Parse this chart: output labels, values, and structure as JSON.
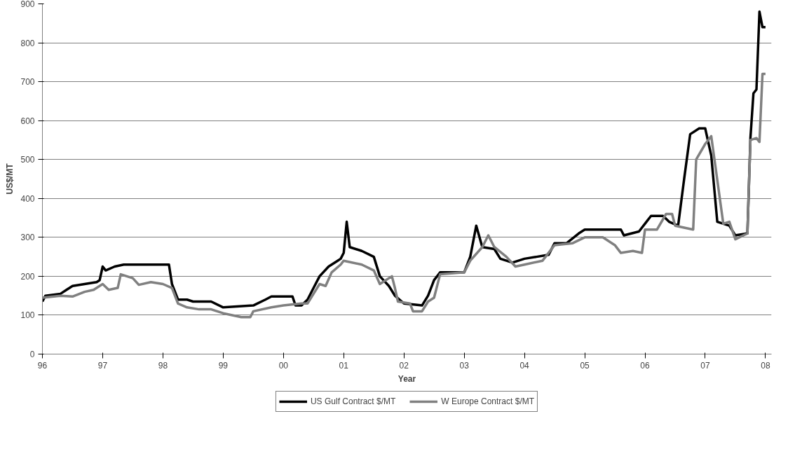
{
  "chart_data": {
    "type": "line",
    "xlabel": "Year",
    "ylabel": "US$/MT",
    "xlim": [
      1996,
      2008.1
    ],
    "ylim": [
      0,
      900
    ],
    "xticks": [
      {
        "value": 1996,
        "label": "96"
      },
      {
        "value": 1997,
        "label": "97"
      },
      {
        "value": 1998,
        "label": "98"
      },
      {
        "value": 1999,
        "label": "99"
      },
      {
        "value": 2000,
        "label": "00"
      },
      {
        "value": 2001,
        "label": "01"
      },
      {
        "value": 2002,
        "label": "02"
      },
      {
        "value": 2003,
        "label": "03"
      },
      {
        "value": 2004,
        "label": "04"
      },
      {
        "value": 2005,
        "label": "05"
      },
      {
        "value": 2006,
        "label": "06"
      },
      {
        "value": 2007,
        "label": "07"
      },
      {
        "value": 2008,
        "label": "08"
      }
    ],
    "yticks": [
      0,
      100,
      200,
      300,
      400,
      500,
      600,
      700,
      800,
      900
    ],
    "grid": "y",
    "legend": "bottom",
    "marker": "none",
    "line_style": "solid",
    "series": [
      {
        "name": "US Gulf Contract $/MT",
        "color": "#000000",
        "x": [
          1996.0,
          1996.05,
          1996.3,
          1996.4,
          1996.5,
          1996.7,
          1996.9,
          1996.95,
          1997.0,
          1997.05,
          1997.2,
          1997.35,
          1998.1,
          1998.15,
          1998.25,
          1998.4,
          1998.5,
          1998.8,
          1999.0,
          1999.5,
          1999.7,
          1999.8,
          2000.15,
          2000.2,
          2000.3,
          2000.4,
          2000.5,
          2000.6,
          2000.75,
          2000.9,
          2000.95,
          2001.0,
          2001.05,
          2001.1,
          2001.3,
          2001.5,
          2001.6,
          2001.75,
          2001.85,
          2002.0,
          2002.3,
          2002.4,
          2002.5,
          2002.6,
          2003.0,
          2003.1,
          2003.2,
          2003.3,
          2003.5,
          2003.6,
          2003.8,
          2004.0,
          2004.2,
          2004.4,
          2004.5,
          2004.7,
          2004.9,
          2005.0,
          2005.6,
          2005.65,
          2005.9,
          2006.0,
          2006.1,
          2006.3,
          2006.4,
          2006.55,
          2006.65,
          2006.75,
          2006.9,
          2007.0,
          2007.1,
          2007.2,
          2007.4,
          2007.5,
          2007.7,
          2007.75,
          2007.8,
          2007.85,
          2007.9,
          2007.95,
          2008.0
        ],
        "values": [
          135,
          150,
          155,
          165,
          175,
          180,
          185,
          190,
          225,
          215,
          225,
          230,
          230,
          180,
          140,
          140,
          135,
          135,
          120,
          125,
          140,
          148,
          148,
          125,
          125,
          140,
          170,
          200,
          225,
          240,
          245,
          260,
          340,
          275,
          265,
          250,
          200,
          175,
          150,
          130,
          125,
          150,
          190,
          210,
          210,
          250,
          330,
          275,
          270,
          245,
          235,
          245,
          250,
          255,
          285,
          285,
          310,
          320,
          320,
          305,
          315,
          335,
          355,
          355,
          340,
          330,
          450,
          565,
          580,
          580,
          510,
          340,
          330,
          305,
          310,
          555,
          670,
          680,
          880,
          840,
          840
        ]
      },
      {
        "name": "W Europe Contract $/MT",
        "color": "#808080",
        "x": [
          1996.0,
          1996.3,
          1996.5,
          1996.7,
          1996.85,
          1997.0,
          1997.1,
          1997.25,
          1997.3,
          1997.5,
          1997.6,
          1997.8,
          1998.0,
          1998.15,
          1998.25,
          1998.4,
          1998.6,
          1998.8,
          1999.0,
          1999.3,
          1999.45,
          1999.5,
          1999.8,
          2000.0,
          2000.3,
          2000.4,
          2000.5,
          2000.6,
          2000.7,
          2000.8,
          2000.95,
          2001.0,
          2001.3,
          2001.5,
          2001.6,
          2001.8,
          2001.85,
          2001.9,
          2002.1,
          2002.15,
          2002.3,
          2002.4,
          2002.5,
          2002.6,
          2003.0,
          2003.1,
          2003.3,
          2003.4,
          2003.5,
          2003.7,
          2003.85,
          2004.0,
          2004.3,
          2004.5,
          2004.8,
          2005.0,
          2005.3,
          2005.5,
          2005.6,
          2005.8,
          2005.95,
          2006.0,
          2006.2,
          2006.35,
          2006.45,
          2006.5,
          2006.8,
          2006.85,
          2007.0,
          2007.1,
          2007.3,
          2007.4,
          2007.5,
          2007.7,
          2007.75,
          2007.85,
          2007.9,
          2007.95,
          2008.0
        ],
        "values": [
          145,
          150,
          148,
          160,
          165,
          180,
          165,
          170,
          205,
          195,
          178,
          185,
          180,
          170,
          130,
          120,
          115,
          115,
          105,
          95,
          95,
          110,
          120,
          125,
          130,
          130,
          155,
          180,
          175,
          210,
          230,
          240,
          230,
          215,
          180,
          200,
          170,
          135,
          130,
          110,
          110,
          135,
          145,
          205,
          210,
          240,
          275,
          305,
          275,
          250,
          225,
          230,
          240,
          280,
          285,
          300,
          300,
          280,
          260,
          265,
          260,
          320,
          320,
          360,
          360,
          330,
          320,
          500,
          540,
          560,
          335,
          340,
          295,
          310,
          550,
          555,
          545,
          720,
          720
        ]
      }
    ]
  }
}
